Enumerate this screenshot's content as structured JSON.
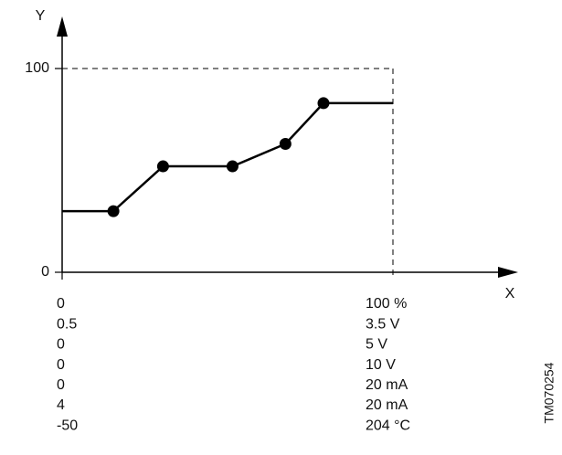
{
  "chart_data": {
    "type": "line",
    "x_axis_label": "X",
    "y_axis_label": "Y",
    "x": [
      0,
      15.5,
      30.5,
      51.5,
      67.5,
      79,
      100
    ],
    "series": [
      {
        "color": "#000000",
        "values": [
          30,
          30,
          52,
          52,
          63,
          83,
          83
        ]
      }
    ],
    "xlim": [
      0,
      100
    ],
    "ylim": [
      0,
      100
    ],
    "yticks": [
      0,
      100
    ],
    "x_scale_rows": [
      {
        "min": 0,
        "max": "100 %"
      },
      {
        "min": 0.5,
        "max": "3.5 V"
      },
      {
        "min": 0,
        "max": "5 V"
      },
      {
        "min": 0,
        "max": "10 V"
      },
      {
        "min": 0,
        "max": "20 mA"
      },
      {
        "min": 4,
        "max": "20 mA"
      },
      {
        "min": -50,
        "max": "204 °C"
      }
    ],
    "code": "TM070254"
  }
}
